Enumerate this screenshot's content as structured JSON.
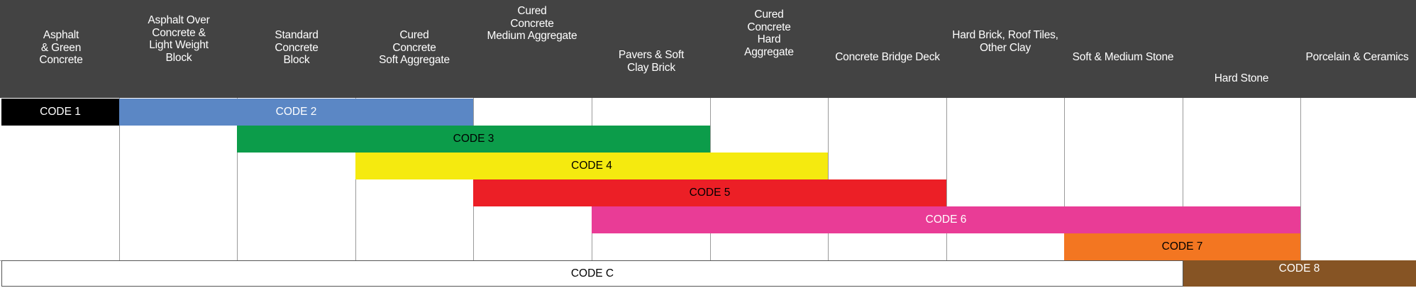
{
  "columns": [
    {
      "id": "asphalt",
      "label": "Asphalt\n& Green\nConcrete"
    },
    {
      "id": "asphalt-over",
      "label": "Asphalt Over\nConcrete &\nLight Weight\nBlock"
    },
    {
      "id": "standard-block",
      "label": "Standard\nConcrete\nBlock"
    },
    {
      "id": "soft-aggregate",
      "label": "Cured\nConcrete\nSoft Aggregate"
    },
    {
      "id": "medium-aggregate",
      "label": "Cured\nConcrete\nMedium Aggregate"
    },
    {
      "id": "pavers",
      "label": "Pavers & Soft\nClay Brick"
    },
    {
      "id": "hard-aggregate",
      "label": "Cured\nConcrete\nHard\nAggregate"
    },
    {
      "id": "bridge-deck",
      "label": "Concrete Bridge Deck"
    },
    {
      "id": "hard-brick",
      "label": "Hard Brick, Roof Tiles,\nOther Clay"
    },
    {
      "id": "soft-medium-stone",
      "label": "Soft & Medium Stone"
    },
    {
      "id": "hard-stone",
      "label": "Hard Stone"
    },
    {
      "id": "porcelain",
      "label": "Porcelain & Ceramics"
    }
  ],
  "codes": [
    {
      "label": "CODE 1",
      "start_col": 0,
      "end_col": 0,
      "row": 0,
      "color": "#000000",
      "text_color": "#ffffff"
    },
    {
      "label": "CODE 2",
      "start_col": 1,
      "end_col": 3,
      "row": 0,
      "color": "#5b87c5",
      "text_color": "#ffffff"
    },
    {
      "label": "CODE 3",
      "start_col": 2,
      "end_col": 5,
      "row": 1,
      "color": "#0c9c4a",
      "text_color": "#000000"
    },
    {
      "label": "CODE 4",
      "start_col": 3,
      "end_col": 6,
      "row": 2,
      "color": "#f5ea0f",
      "text_color": "#000000"
    },
    {
      "label": "CODE 5",
      "start_col": 4,
      "end_col": 7,
      "row": 3,
      "color": "#ec1f26",
      "text_color": "#000000"
    },
    {
      "label": "CODE 6",
      "start_col": 5,
      "end_col": 10,
      "row": 4,
      "color": "#e93c96",
      "text_color": "#ffffff"
    },
    {
      "label": "CODE 7",
      "start_col": 9,
      "end_col": 10,
      "row": 5,
      "color": "#f37621",
      "text_color": "#000000"
    },
    {
      "label": "CODE 8",
      "start_col": 10,
      "end_col": 11,
      "row": 6,
      "color": "#865424",
      "text_color": "#ffffff"
    }
  ],
  "code_c": {
    "label": "CODE C",
    "start_col": 0,
    "end_col": 9
  }
}
